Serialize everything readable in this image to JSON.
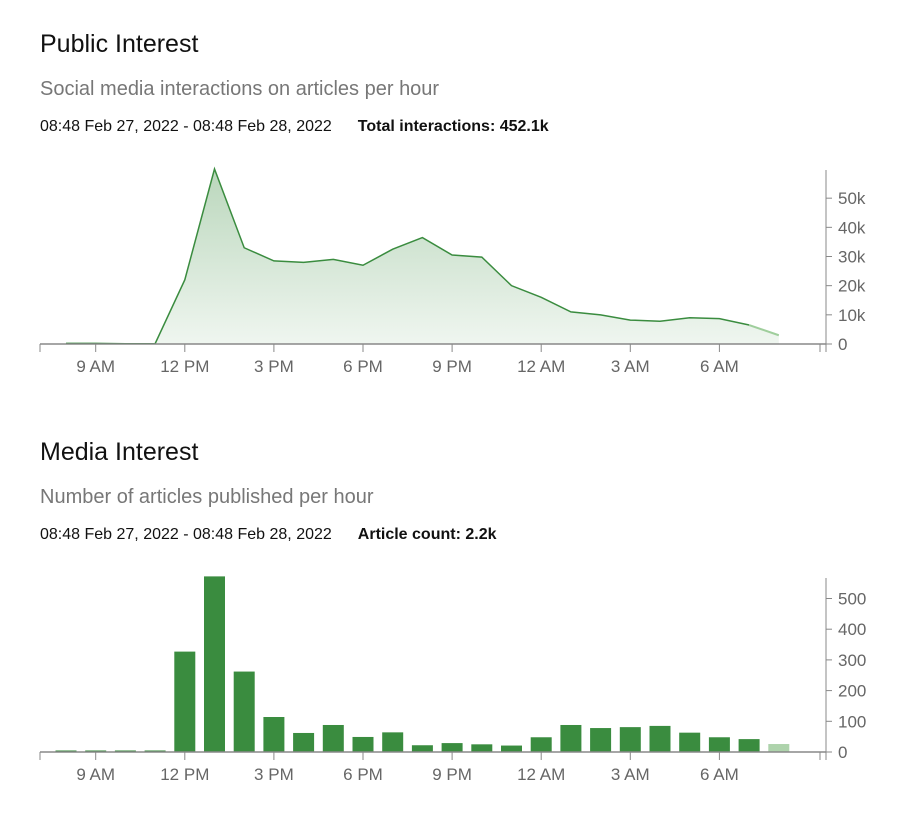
{
  "chart_data": [
    {
      "type": "area",
      "title": "Public Interest",
      "subtitle": "Social media interactions on articles per hour",
      "date_range": "08:48 Feb 27, 2022 - 08:48 Feb 28, 2022",
      "total_label": "Total interactions: 452.1k",
      "x_hours": [
        "8 AM",
        "9 AM",
        "10 AM",
        "11 AM",
        "12 PM",
        "1 PM",
        "2 PM",
        "3 PM",
        "4 PM",
        "5 PM",
        "6 PM",
        "7 PM",
        "8 PM",
        "9 PM",
        "10 PM",
        "11 PM",
        "12 AM",
        "1 AM",
        "2 AM",
        "3 AM",
        "4 AM",
        "5 AM",
        "6 AM",
        "7 AM",
        "8 AM"
      ],
      "values": [
        200,
        200,
        100,
        100,
        22000,
        60000,
        33000,
        28500,
        28000,
        29000,
        27000,
        32500,
        36500,
        30500,
        29800,
        20000,
        16000,
        11000,
        10000,
        8200,
        7800,
        9000,
        8700,
        6500,
        3000
      ],
      "x_tick_labels": [
        "9 AM",
        "12 PM",
        "3 PM",
        "6 PM",
        "9 PM",
        "12 AM",
        "3 AM",
        "6 AM"
      ],
      "y_tick_labels": [
        "0",
        "10k",
        "20k",
        "30k",
        "40k",
        "50k"
      ],
      "y_ticks": [
        0,
        10000,
        20000,
        30000,
        40000,
        50000
      ],
      "ylim": [
        0,
        60000
      ],
      "color": "#3a8c3f"
    },
    {
      "type": "bar",
      "title": "Media Interest",
      "subtitle": "Number of articles published per hour",
      "date_range": "08:48 Feb 27, 2022 - 08:48 Feb 28, 2022",
      "total_label": "Article count: 2.2k",
      "x_hours": [
        "8 AM",
        "9 AM",
        "10 AM",
        "11 AM",
        "12 PM",
        "1 PM",
        "2 PM",
        "3 PM",
        "4 PM",
        "5 PM",
        "6 PM",
        "7 PM",
        "8 PM",
        "9 PM",
        "10 PM",
        "11 PM",
        "12 AM",
        "1 AM",
        "2 AM",
        "3 AM",
        "4 AM",
        "5 AM",
        "6 AM",
        "7 AM",
        "8 AM"
      ],
      "values": [
        5,
        5,
        5,
        5,
        327,
        572,
        262,
        114,
        62,
        88,
        49,
        64,
        22,
        29,
        25,
        21,
        48,
        88,
        78,
        81,
        85,
        63,
        48,
        42,
        26
      ],
      "x_tick_labels": [
        "9 AM",
        "12 PM",
        "3 PM",
        "6 PM",
        "9 PM",
        "12 AM",
        "3 AM",
        "6 AM"
      ],
      "y_tick_labels": [
        "0",
        "100",
        "200",
        "300",
        "400",
        "500"
      ],
      "y_ticks": [
        0,
        100,
        200,
        300,
        400,
        500
      ],
      "ylim": [
        0,
        570
      ],
      "color": "#3a8c3f",
      "partial_color": "#aed3ac"
    }
  ]
}
